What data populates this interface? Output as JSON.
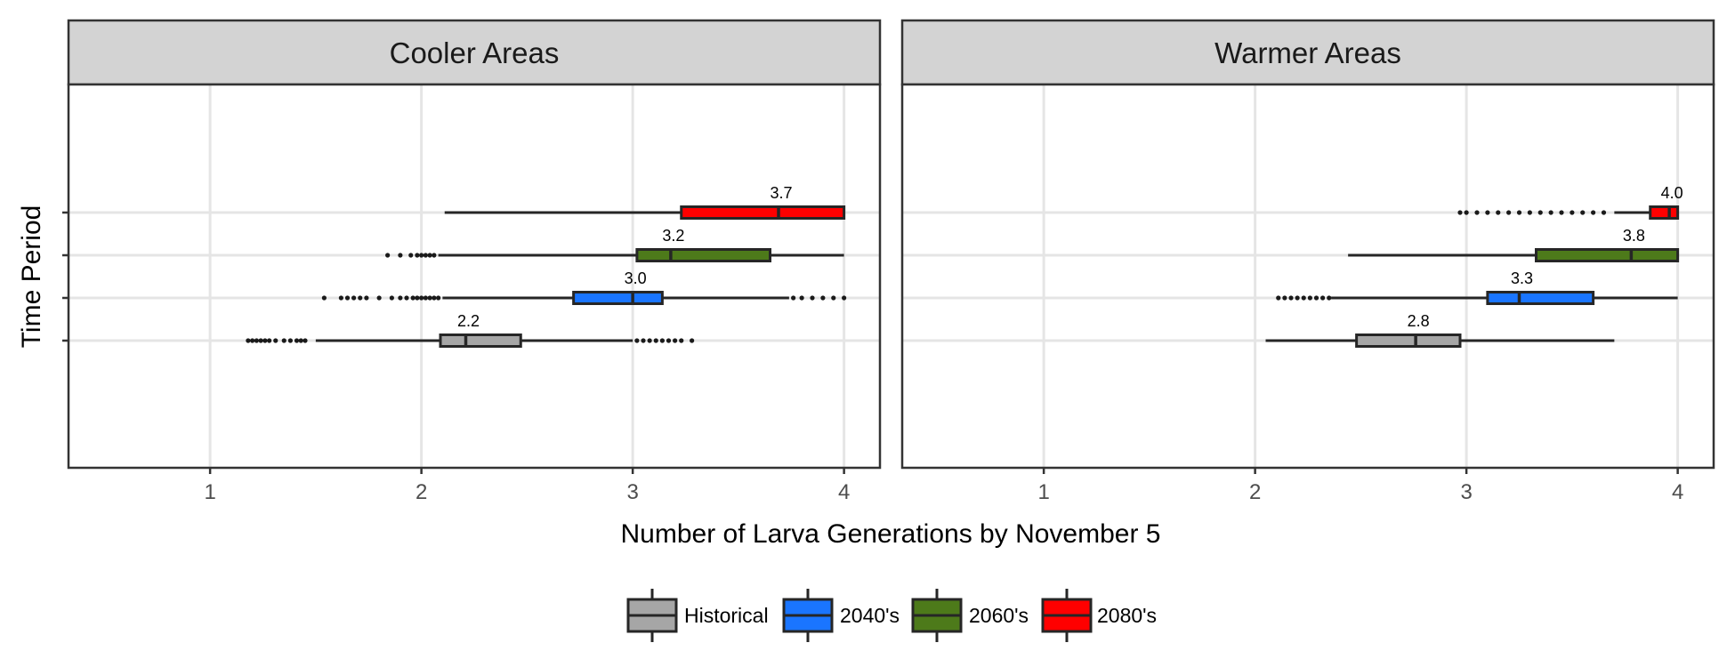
{
  "chart_data": {
    "type": "boxplot",
    "orientation": "horizontal",
    "xlabel": "Number of Larva Generations by November 5",
    "ylabel": "Time Period",
    "xlim": [
      0.33,
      4.17
    ],
    "xticks": [
      "1",
      "2",
      "3",
      "4"
    ],
    "grid": true,
    "legend_position": "bottom",
    "series": [
      {
        "name": "Historical",
        "color": "#a6a6a6"
      },
      {
        "name": "2040's",
        "color": "#1a75ff"
      },
      {
        "name": "2060's",
        "color": "#4d7a1a"
      },
      {
        "name": "2080's",
        "color": "#ff0000"
      }
    ],
    "panels": [
      {
        "title": "Cooler Areas",
        "boxes": [
          {
            "series": "Historical",
            "whisker_low": 1.5,
            "q1": 2.09,
            "median": 2.21,
            "q3": 2.47,
            "whisker_high": 3.0,
            "label": "2.2",
            "outliers": [
              1.18,
              1.2,
              1.22,
              1.24,
              1.26,
              1.28,
              1.31,
              1.35,
              1.38,
              1.41,
              1.43,
              1.45,
              3.02,
              3.05,
              3.08,
              3.11,
              3.14,
              3.17,
              3.2,
              3.23,
              3.28
            ]
          },
          {
            "series": "2040's",
            "whisker_low": 2.1,
            "q1": 2.72,
            "median": 3.0,
            "q3": 3.14,
            "whisker_high": 3.74,
            "label": "3.0",
            "outliers": [
              1.54,
              1.62,
              1.65,
              1.68,
              1.71,
              1.74,
              1.8,
              1.86,
              1.9,
              1.93,
              1.96,
              1.98,
              2.0,
              2.02,
              2.04,
              2.06,
              2.08,
              3.76,
              3.8,
              3.85,
              3.9,
              3.95,
              4.0
            ]
          },
          {
            "series": "2060's",
            "whisker_low": 2.08,
            "q1": 3.02,
            "median": 3.18,
            "q3": 3.65,
            "whisker_high": 4.0,
            "label": "3.2",
            "outliers": [
              1.84,
              1.9,
              1.95,
              1.98,
              2.0,
              2.02,
              2.04,
              2.06
            ]
          },
          {
            "series": "2080's",
            "whisker_low": 2.11,
            "q1": 3.23,
            "median": 3.69,
            "q3": 4.0,
            "whisker_high": 4.0,
            "label": "3.7",
            "outliers": []
          }
        ]
      },
      {
        "title": "Warmer Areas",
        "boxes": [
          {
            "series": "Historical",
            "whisker_low": 2.05,
            "q1": 2.48,
            "median": 2.76,
            "q3": 2.97,
            "whisker_high": 3.7,
            "label": "2.8",
            "outliers": []
          },
          {
            "series": "2040's",
            "whisker_low": 2.36,
            "q1": 3.1,
            "median": 3.25,
            "q3": 3.6,
            "whisker_high": 4.0,
            "label": "3.3",
            "outliers": [
              2.11,
              2.14,
              2.17,
              2.2,
              2.23,
              2.26,
              2.29,
              2.32,
              2.35
            ]
          },
          {
            "series": "2060's",
            "whisker_low": 2.44,
            "q1": 3.33,
            "median": 3.78,
            "q3": 4.0,
            "whisker_high": 4.0,
            "label": "3.8",
            "outliers": []
          },
          {
            "series": "2080's",
            "whisker_low": 3.7,
            "q1": 3.87,
            "median": 3.96,
            "q3": 4.0,
            "whisker_high": 4.0,
            "label": "4.0",
            "outliers": [
              2.97,
              3.0,
              3.05,
              3.1,
              3.15,
              3.2,
              3.25,
              3.3,
              3.35,
              3.4,
              3.45,
              3.5,
              3.55,
              3.6,
              3.65
            ]
          }
        ]
      }
    ]
  }
}
